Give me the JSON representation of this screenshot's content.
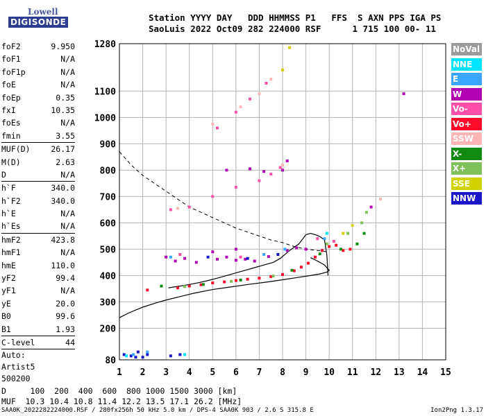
{
  "logo": {
    "line1": "Lowell",
    "line2": "DIGISONDE"
  },
  "header": {
    "line1": "Station YYYY DAY   DDD HHMMSS P1   FFS  S AXN PPS IGA PS",
    "line2": "SaoLuis 2022 Oct09 282 224000 RSF      1 715 100 00- 11"
  },
  "params": [
    {
      "name": "foF2",
      "value": "9.950"
    },
    {
      "name": "foF1",
      "value": "N/A"
    },
    {
      "name": "foF1p",
      "value": "N/A"
    },
    {
      "name": "foE",
      "value": "N/A"
    },
    {
      "name": "foEp",
      "value": "0.35"
    },
    {
      "name": "fxI",
      "value": "10.35"
    },
    {
      "name": "foEs",
      "value": "N/A"
    },
    {
      "name": "fmin",
      "value": "3.55"
    },
    {
      "name": "---"
    },
    {
      "name": "MUF(D)",
      "value": "26.17"
    },
    {
      "name": "M(D)",
      "value": "2.63"
    },
    {
      "name": "D",
      "value": "N/A"
    },
    {
      "name": "---"
    },
    {
      "name": "h`F",
      "value": "340.0"
    },
    {
      "name": "h`F2",
      "value": "340.0"
    },
    {
      "name": "h`E",
      "value": "N/A"
    },
    {
      "name": "h`Es",
      "value": "N/A"
    },
    {
      "name": "---"
    },
    {
      "name": "hmF2",
      "value": "423.8"
    },
    {
      "name": "hmF1",
      "value": "N/A"
    },
    {
      "name": "hmE",
      "value": "110.0"
    },
    {
      "name": "yF2",
      "value": "99.4"
    },
    {
      "name": "yF1",
      "value": "N/A"
    },
    {
      "name": "yE",
      "value": "20.0"
    },
    {
      "name": "B0",
      "value": "99.6"
    },
    {
      "name": "B1",
      "value": "1.93"
    },
    {
      "name": "---"
    },
    {
      "name": "C-level",
      "value": "44"
    },
    {
      "name": "---"
    },
    {
      "text": "Auto:"
    },
    {
      "text": "Artist5"
    },
    {
      "text": "500200"
    }
  ],
  "legend": [
    {
      "label": "NoVal",
      "color": "#9a9a9a"
    },
    {
      "label": "NNE",
      "color": "#00e5ff"
    },
    {
      "label": "E",
      "color": "#3aa6ff"
    },
    {
      "label": "W",
      "color": "#b000b0"
    },
    {
      "label": "Vo-",
      "color": "#ff4fa8"
    },
    {
      "label": "Vo+",
      "color": "#ff0a2a"
    },
    {
      "label": "SSW",
      "color": "#ffb4b4"
    },
    {
      "label": "X-",
      "color": "#108a10"
    },
    {
      "label": "X+",
      "color": "#7fc05a"
    },
    {
      "label": "SSE",
      "color": "#d2d200"
    },
    {
      "label": "NNW",
      "color": "#1818c8"
    }
  ],
  "footer": {
    "line1": "D     100  200  400  600  800 1000 1500 3000 [km]",
    "line2": "MUF  10.3 10.4 10.8 11.4 12.2 13.5 17.1 26.2 [MHz]",
    "file": "SAA0K_2022282224000.RSF / 280fx256h 50 kHz 5.0 km / DPS-4 SAA0K 903 / 2.6 S 315.8 E",
    "version": "Ion2Png 1.3.17"
  },
  "chart_data": {
    "type": "scatter",
    "title": "",
    "xlabel": "",
    "ylabel": "",
    "xlim": [
      1,
      15
    ],
    "ylim": [
      80,
      1280
    ],
    "x_ticks": [
      1,
      2,
      3,
      4,
      5,
      6,
      7,
      8,
      9,
      10,
      11,
      12,
      13,
      14,
      15
    ],
    "y_ticks": [
      80,
      200,
      300,
      400,
      500,
      600,
      700,
      800,
      900,
      1000,
      1100,
      1280
    ],
    "grid": true,
    "series": [
      {
        "name": "Vo+",
        "color": "#ff0a2a",
        "points": [
          [
            2.2,
            345
          ],
          [
            3.5,
            353
          ],
          [
            4.0,
            360
          ],
          [
            4.5,
            365
          ],
          [
            5.0,
            372
          ],
          [
            5.5,
            376
          ],
          [
            6.0,
            381
          ],
          [
            6.5,
            386
          ],
          [
            7.0,
            390
          ],
          [
            7.5,
            396
          ],
          [
            8.0,
            404
          ],
          [
            8.5,
            418
          ],
          [
            8.8,
            432
          ],
          [
            9.1,
            447
          ],
          [
            9.4,
            470
          ],
          [
            9.7,
            495
          ],
          [
            10.0,
            510
          ],
          [
            10.3,
            515
          ],
          [
            10.6,
            495
          ],
          [
            10.9,
            500
          ]
        ]
      },
      {
        "name": "W",
        "color": "#b000b0",
        "points": [
          [
            3.0,
            470
          ],
          [
            3.4,
            455
          ],
          [
            3.8,
            465
          ],
          [
            4.3,
            450
          ],
          [
            5.2,
            462
          ],
          [
            5.6,
            470
          ],
          [
            6.0,
            458
          ],
          [
            6.4,
            462
          ],
          [
            6.8,
            455
          ],
          [
            7.4,
            472
          ],
          [
            8.2,
            495
          ],
          [
            8.6,
            505
          ],
          [
            9.0,
            500
          ],
          [
            5.0,
            490
          ],
          [
            6.0,
            500
          ],
          [
            8.0,
            800
          ],
          [
            8.2,
            835
          ],
          [
            5.6,
            800
          ],
          [
            6.6,
            805
          ],
          [
            7.2,
            795
          ],
          [
            13.2,
            1090
          ],
          [
            11.8,
            660
          ]
        ]
      },
      {
        "name": "Vo-",
        "color": "#ff4fa8",
        "points": [
          [
            3.2,
            650
          ],
          [
            4.0,
            660
          ],
          [
            5.0,
            700
          ],
          [
            6.0,
            735
          ],
          [
            7.0,
            760
          ],
          [
            7.5,
            785
          ],
          [
            7.9,
            810
          ],
          [
            5.2,
            960
          ],
          [
            6.0,
            1020
          ],
          [
            6.6,
            1070
          ],
          [
            7.3,
            1130
          ],
          [
            3.6,
            480
          ],
          [
            6.2,
            470
          ],
          [
            9.5,
            540
          ],
          [
            10.2,
            530
          ]
        ]
      },
      {
        "name": "NNW",
        "color": "#1818c8",
        "points": [
          [
            1.2,
            100
          ],
          [
            1.5,
            95
          ],
          [
            1.8,
            110
          ],
          [
            2.2,
            100
          ],
          [
            2.0,
            90
          ],
          [
            3.2,
            95
          ],
          [
            3.6,
            100
          ],
          [
            1.7,
            90
          ],
          [
            4.8,
            470
          ],
          [
            6.5,
            465
          ],
          [
            7.8,
            480
          ]
        ]
      },
      {
        "name": "X-",
        "color": "#108a10",
        "points": [
          [
            2.8,
            360
          ],
          [
            4.6,
            366
          ],
          [
            6.2,
            383
          ],
          [
            8.4,
            420
          ],
          [
            9.6,
            482
          ],
          [
            10.5,
            500
          ],
          [
            11.2,
            520
          ],
          [
            11.5,
            560
          ]
        ]
      },
      {
        "name": "X+",
        "color": "#7fc05a",
        "points": [
          [
            3.8,
            358
          ],
          [
            5.8,
            378
          ],
          [
            7.6,
            398
          ],
          [
            9.9,
            520
          ],
          [
            10.8,
            560
          ],
          [
            11.4,
            600
          ],
          [
            11.6,
            640
          ]
        ]
      },
      {
        "name": "SSE",
        "color": "#d2d200",
        "points": [
          [
            8.0,
            1180
          ],
          [
            8.3,
            1265
          ],
          [
            10.6,
            560
          ],
          [
            11.0,
            590
          ]
        ]
      },
      {
        "name": "E",
        "color": "#3aa6ff",
        "points": [
          [
            1.6,
            100
          ],
          [
            2.2,
            110
          ],
          [
            8.1,
            500
          ],
          [
            9.8,
            540
          ],
          [
            3.2,
            470
          ],
          [
            7.2,
            480
          ]
        ]
      },
      {
        "name": "NNE",
        "color": "#00e5ff",
        "points": [
          [
            1.3,
            95
          ],
          [
            3.8,
            100
          ],
          [
            9.9,
            560
          ]
        ]
      },
      {
        "name": "SSW",
        "color": "#ffb4b4",
        "points": [
          [
            5.0,
            975
          ],
          [
            6.2,
            1040
          ],
          [
            7.0,
            1090
          ],
          [
            7.5,
            1145
          ],
          [
            3.5,
            655
          ],
          [
            8.0,
            820
          ],
          [
            12.2,
            690
          ]
        ]
      }
    ],
    "virtual_height_trace": [
      [
        9.95,
        400
      ],
      [
        9.9,
        478
      ],
      [
        9.8,
        535
      ],
      [
        9.6,
        548
      ],
      [
        9.4,
        555
      ],
      [
        9.2,
        560
      ],
      [
        9.0,
        555
      ],
      [
        8.7,
        520
      ],
      [
        8.3,
        495
      ],
      [
        7.9,
        465
      ],
      [
        7.6,
        450
      ],
      [
        7.2,
        440
      ],
      [
        6.8,
        430
      ],
      [
        6.4,
        420
      ],
      [
        6.0,
        410
      ],
      [
        5.6,
        400
      ],
      [
        5.2,
        390
      ],
      [
        4.8,
        381
      ],
      [
        4.4,
        373
      ],
      [
        4.0,
        366
      ],
      [
        3.6,
        360
      ],
      [
        3.3,
        356
      ],
      [
        3.1,
        353
      ]
    ],
    "true_height_profile": [
      [
        1.0,
        240
      ],
      [
        1.4,
        258
      ],
      [
        2.0,
        280
      ],
      [
        2.6,
        297
      ],
      [
        3.0,
        307
      ],
      [
        3.6,
        320
      ],
      [
        4.2,
        333
      ],
      [
        5.0,
        347
      ],
      [
        5.8,
        357
      ],
      [
        6.6,
        367
      ],
      [
        7.4,
        376
      ],
      [
        8.0,
        384
      ],
      [
        8.6,
        392
      ],
      [
        9.2,
        400
      ],
      [
        9.6,
        406
      ],
      [
        9.9,
        413
      ],
      [
        10.0,
        420
      ],
      [
        9.8,
        440
      ],
      [
        9.5,
        455
      ],
      [
        9.2,
        468
      ]
    ],
    "muf_curve": [
      [
        1.0,
        870
      ],
      [
        1.5,
        820
      ],
      [
        2.0,
        780
      ],
      [
        2.5,
        750
      ],
      [
        3.0,
        720
      ],
      [
        3.5,
        690
      ],
      [
        4.0,
        660
      ],
      [
        4.5,
        640
      ],
      [
        5.0,
        620
      ],
      [
        5.5,
        600
      ],
      [
        6.0,
        580
      ],
      [
        6.5,
        565
      ],
      [
        7.0,
        550
      ],
      [
        7.5,
        535
      ],
      [
        8.0,
        525
      ],
      [
        8.5,
        510
      ],
      [
        9.0,
        500
      ],
      [
        9.5,
        495
      ],
      [
        9.95,
        490
      ]
    ]
  }
}
